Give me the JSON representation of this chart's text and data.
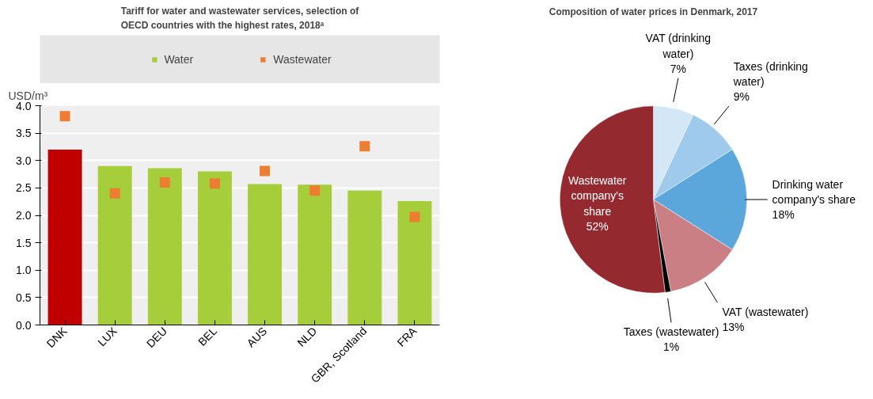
{
  "chart_data": [
    {
      "type": "bar",
      "title": "Tariff for water and wastewater services, selection of OECD countries with the highest rates, 2018ᵃ",
      "ylabel": "USD/m³",
      "categories": [
        "DNK",
        "LUX",
        "DEU",
        "BEL",
        "AUS",
        "NLD",
        "GBR, Scotland",
        "FRA"
      ],
      "series": [
        {
          "name": "Water",
          "type": "bar",
          "color": "#a6cd3a",
          "colors": [
            "#c00000",
            "#a6cd3a",
            "#a6cd3a",
            "#a6cd3a",
            "#a6cd3a",
            "#a6cd3a",
            "#a6cd3a",
            "#a6cd3a"
          ],
          "values": [
            3.2,
            2.9,
            2.86,
            2.8,
            2.57,
            2.56,
            2.45,
            2.26
          ]
        },
        {
          "name": "Wastewater",
          "type": "scatter",
          "color": "#ed7d31",
          "marker": "square",
          "values": [
            3.81,
            2.4,
            2.6,
            2.58,
            2.81,
            2.45,
            3.26,
            1.97
          ]
        }
      ],
      "ylim": [
        0,
        4
      ],
      "yticks": [
        {
          "value": 0,
          "label": "0.0"
        },
        0.5,
        {
          "value": 1,
          "label": "1.0"
        },
        1.5,
        {
          "value": 2,
          "label": "2.0"
        },
        2.5,
        {
          "value": 3,
          "label": "3.0"
        },
        3.5,
        {
          "value": 4,
          "label": "4.0"
        }
      ],
      "grid": true,
      "legend": "top"
    },
    {
      "type": "pie",
      "title": "Composition of water prices in Denmark, 2017",
      "categories": [
        "VAT (drinking water)",
        "Taxes (drinking water)",
        "Drinking water company's share",
        "VAT (wastewater)",
        "Taxes (wastewater)",
        "Wastewater company's share"
      ],
      "values": [
        7,
        9,
        18,
        13,
        1,
        52
      ],
      "colors": [
        "#d4e7f6",
        "#9fcaec",
        "#5ba7dc",
        "#c97f84",
        "#000000",
        "#952930"
      ],
      "value_labels": [
        "7%",
        "9%",
        "18%",
        "13%",
        "1%",
        "52%"
      ]
    }
  ]
}
